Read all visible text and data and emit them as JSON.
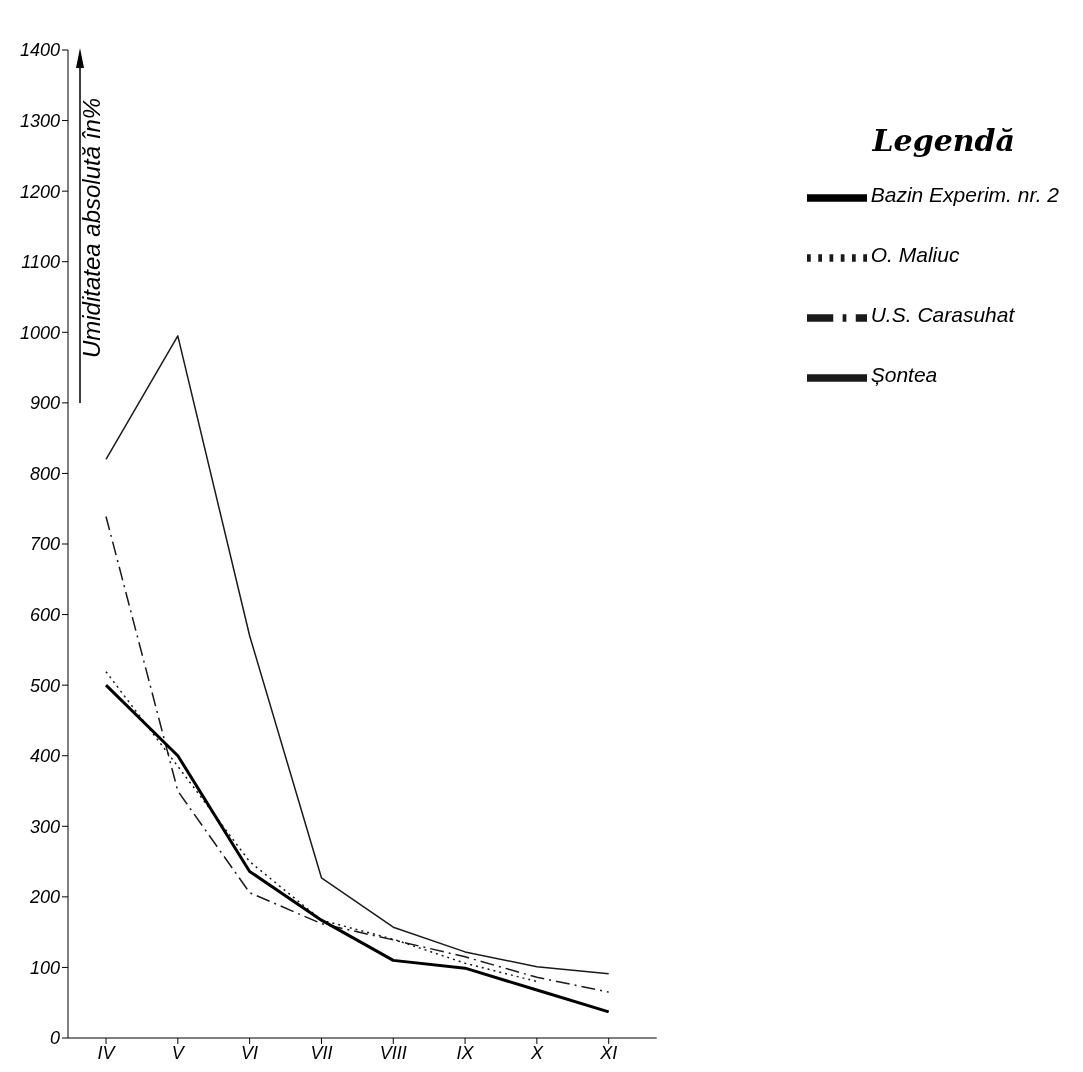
{
  "chart_data": {
    "type": "line",
    "ylabel": "Umiditatea absolută în%",
    "legend_title": "Legendă",
    "categories": [
      "IV",
      "V",
      "VI",
      "VII",
      "VIII",
      "IX",
      "X",
      "XI"
    ],
    "series": [
      {
        "name": "Șontea",
        "color": "#1a1a1a",
        "line_style": "solid",
        "values": [
          820,
          995,
          570,
          227,
          157,
          122,
          101,
          91
        ]
      },
      {
        "name": "U.S. Carasuhat",
        "color": "#1a1a1a",
        "line_style": "dashed",
        "values": [
          739,
          350,
          206,
          162,
          139,
          115,
          86,
          65
        ]
      },
      {
        "name": "O. Maliuc",
        "color": "#1a1a1a",
        "line_style": "dotted",
        "values": [
          519,
          385,
          250,
          167,
          140,
          106,
          80,
          null
        ]
      },
      {
        "name": "Bazin Experim. nr. 2",
        "color": "#000000",
        "line_style": "solid",
        "values": [
          500,
          400,
          236,
          167,
          110,
          99,
          68,
          37
        ]
      }
    ],
    "ylim": [
      0,
      1400
    ],
    "yticks": [
      0,
      100,
      200,
      300,
      400,
      500,
      600,
      700,
      800,
      900,
      1000,
      1100,
      1200,
      1300,
      1400
    ],
    "legend": "top right",
    "marker": "none"
  }
}
